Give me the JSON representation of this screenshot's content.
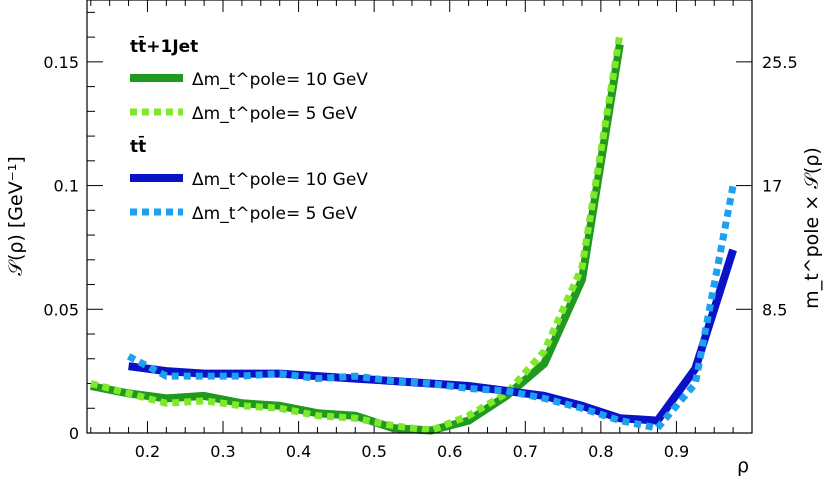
{
  "chart_data": {
    "type": "line",
    "title": "",
    "xlabel": "ρ",
    "ylabel": "𝒮(ρ) [GeV⁻¹]",
    "ylabel_right": "m_t^pole × 𝒮(ρ)",
    "xlim": [
      0.12,
      1.0
    ],
    "ylim": [
      0,
      0.175
    ],
    "x_ticks": [
      0.2,
      0.3,
      0.4,
      0.5,
      0.6,
      0.7,
      0.8,
      0.9
    ],
    "x_tick_labels": [
      "0.2",
      "0.3",
      "0.4",
      "0.5",
      "0.6",
      "0.7",
      "0.8",
      "0.9"
    ],
    "y_ticks": [
      0,
      0.05,
      0.1,
      0.15
    ],
    "y_tick_labels": [
      "0",
      "0.05",
      "0.1",
      "0.15"
    ],
    "y_right_ticks": [
      0.05,
      0.1,
      0.15
    ],
    "y_right_tick_labels": [
      "8.5",
      "17",
      "25.5"
    ],
    "legend": {
      "groups": [
        {
          "title": "tt̄+1Jet",
          "entries": [
            {
              "label": "Δm_t^pole= 10 GeV",
              "series": 0
            },
            {
              "label": "Δm_t^pole= 5 GeV",
              "series": 1
            }
          ]
        },
        {
          "title": "tt̄",
          "entries": [
            {
              "label": "Δm_t^pole= 10 GeV",
              "series": 2
            },
            {
              "label": "Δm_t^pole= 5 GeV",
              "series": 3
            }
          ]
        }
      ]
    },
    "series": [
      {
        "name": "tt̄+1Jet Δm_t^pole = 10 GeV",
        "color": "#1f9a1f",
        "style": "solid",
        "x": [
          0.125,
          0.175,
          0.225,
          0.275,
          0.325,
          0.375,
          0.425,
          0.475,
          0.525,
          0.575,
          0.625,
          0.675,
          0.725,
          0.775,
          0.825
        ],
        "y": [
          0.019,
          0.016,
          0.014,
          0.015,
          0.012,
          0.011,
          0.008,
          0.007,
          0.002,
          0.001,
          0.005,
          0.015,
          0.028,
          0.062,
          0.157
        ]
      },
      {
        "name": "tt̄+1Jet Δm_t^pole = 5 GeV",
        "color": "#7fe82a",
        "style": "dotted",
        "x": [
          0.125,
          0.175,
          0.225,
          0.275,
          0.325,
          0.375,
          0.425,
          0.475,
          0.525,
          0.575,
          0.625,
          0.675,
          0.725,
          0.775,
          0.825
        ],
        "y": [
          0.02,
          0.016,
          0.012,
          0.013,
          0.011,
          0.01,
          0.007,
          0.006,
          0.003,
          0.001,
          0.007,
          0.016,
          0.033,
          0.067,
          0.161
        ]
      },
      {
        "name": "tt̄ Δm_t^pole = 10 GeV",
        "color": "#0a12c8",
        "style": "solid",
        "x": [
          0.175,
          0.225,
          0.275,
          0.325,
          0.375,
          0.425,
          0.475,
          0.525,
          0.575,
          0.625,
          0.675,
          0.725,
          0.775,
          0.825,
          0.875,
          0.925,
          0.975
        ],
        "y": [
          0.027,
          0.025,
          0.024,
          0.024,
          0.024,
          0.023,
          0.022,
          0.021,
          0.02,
          0.019,
          0.017,
          0.015,
          0.011,
          0.006,
          0.005,
          0.026,
          0.074
        ]
      },
      {
        "name": "tt̄ Δm_t^pole = 5 GeV",
        "color": "#1e9ff0",
        "style": "dotted",
        "x": [
          0.175,
          0.225,
          0.275,
          0.325,
          0.375,
          0.425,
          0.475,
          0.525,
          0.575,
          0.625,
          0.675,
          0.725,
          0.775,
          0.825,
          0.875,
          0.925,
          0.975
        ],
        "y": [
          0.031,
          0.023,
          0.023,
          0.023,
          0.024,
          0.022,
          0.023,
          0.021,
          0.02,
          0.018,
          0.017,
          0.014,
          0.01,
          0.005,
          0.002,
          0.02,
          0.1
        ]
      }
    ]
  }
}
